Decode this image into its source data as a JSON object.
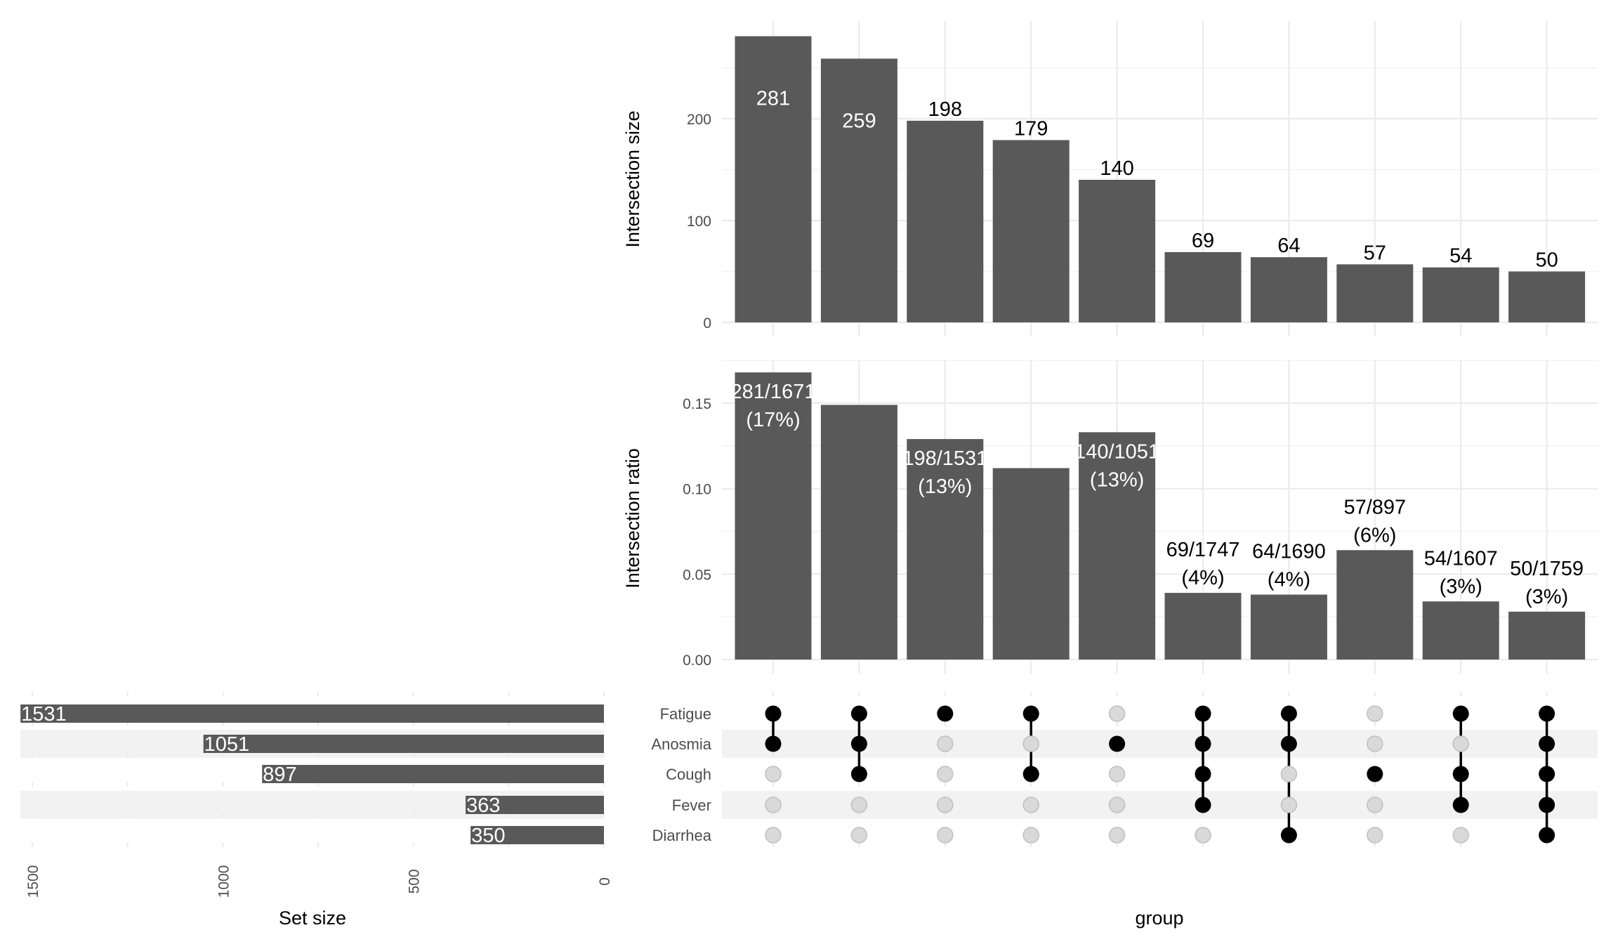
{
  "chart_data": {
    "type": "upset",
    "sets": [
      "Fatigue",
      "Anosmia",
      "Cough",
      "Fever",
      "Diarrhea"
    ],
    "set_sizes": [
      1531,
      1051,
      897,
      363,
      350
    ],
    "set_size_axis": {
      "title": "Set size",
      "ticks": [
        1500,
        1000,
        500,
        0
      ],
      "range": [
        1600,
        0
      ]
    },
    "intersection_axis_title": "group",
    "intersections": [
      {
        "members": [
          "Fatigue",
          "Anosmia"
        ],
        "size": 281,
        "ratio": 0.168,
        "ratio_label": "281/1671",
        "pct_label": "(17%)",
        "show_ratio_label": true
      },
      {
        "members": [
          "Fatigue",
          "Anosmia",
          "Cough"
        ],
        "size": 259,
        "ratio": 0.149,
        "ratio_label": "",
        "pct_label": "",
        "show_ratio_label": false
      },
      {
        "members": [
          "Fatigue"
        ],
        "size": 198,
        "ratio": 0.129,
        "ratio_label": "198/1531",
        "pct_label": "(13%)",
        "show_ratio_label": true
      },
      {
        "members": [
          "Fatigue",
          "Cough"
        ],
        "size": 179,
        "ratio": 0.112,
        "ratio_label": "",
        "pct_label": "",
        "show_ratio_label": false
      },
      {
        "members": [
          "Anosmia"
        ],
        "size": 140,
        "ratio": 0.133,
        "ratio_label": "140/1051",
        "pct_label": "(13%)",
        "show_ratio_label": true
      },
      {
        "members": [
          "Fatigue",
          "Anosmia",
          "Cough",
          "Fever"
        ],
        "size": 69,
        "ratio": 0.039,
        "ratio_label": "69/1747",
        "pct_label": "(4%)",
        "show_ratio_label": true
      },
      {
        "members": [
          "Fatigue",
          "Anosmia",
          "Diarrhea"
        ],
        "size": 64,
        "ratio": 0.038,
        "ratio_label": "64/1690",
        "pct_label": "(4%)",
        "show_ratio_label": true
      },
      {
        "members": [
          "Cough"
        ],
        "size": 57,
        "ratio": 0.064,
        "ratio_label": "57/897",
        "pct_label": "(6%)",
        "show_ratio_label": true
      },
      {
        "members": [
          "Fatigue",
          "Cough",
          "Fever"
        ],
        "size": 54,
        "ratio": 0.034,
        "ratio_label": "54/1607",
        "pct_label": "(3%)",
        "show_ratio_label": true
      },
      {
        "members": [
          "Fatigue",
          "Anosmia",
          "Cough",
          "Fever",
          "Diarrhea"
        ],
        "size": 50,
        "ratio": 0.028,
        "ratio_label": "50/1759",
        "pct_label": "(3%)",
        "show_ratio_label": true
      }
    ],
    "size_panel": {
      "ylabel": "Intersection size",
      "ticks": [
        0,
        100,
        200
      ],
      "tick_labels": [
        "0",
        "100",
        "200"
      ],
      "ylim": [
        0,
        300
      ],
      "inside_label_threshold": 250
    },
    "ratio_panel": {
      "ylabel": "Intersection ratio",
      "ticks": [
        0,
        0.05,
        0.1,
        0.15
      ],
      "tick_labels": [
        "0.00",
        "0.05",
        "0.10",
        "0.15"
      ],
      "ylim": [
        0,
        0.175
      ]
    },
    "colors": {
      "bar": "#595959",
      "dot_active": "#000000",
      "dot_inactive": "#d9d9d9",
      "dot_inactive_stroke": "#bfbfbf",
      "stripe": "#f2f2f2",
      "label_inside": "#ffffff",
      "label_outside": "#000000"
    },
    "grid": true
  }
}
